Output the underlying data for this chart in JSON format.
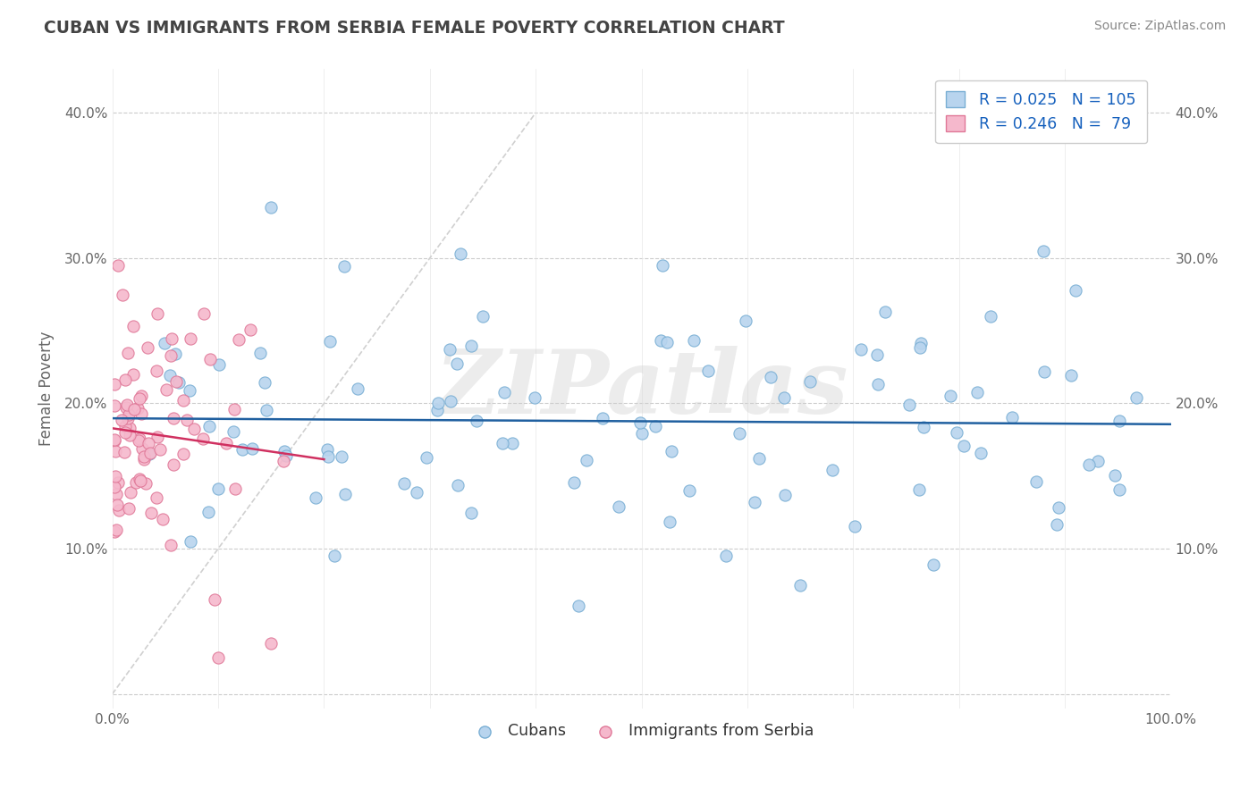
{
  "title": "CUBAN VS IMMIGRANTS FROM SERBIA FEMALE POVERTY CORRELATION CHART",
  "source": "Source: ZipAtlas.com",
  "ylabel": "Female Poverty",
  "xlim": [
    0,
    100
  ],
  "ylim": [
    -1,
    43
  ],
  "series": [
    {
      "name": "Cubans",
      "color": "#b8d4ee",
      "edge_color": "#7aafd4",
      "R": 0.025,
      "N": 105,
      "trend_color": "#2060a0"
    },
    {
      "name": "Immigrants from Serbia",
      "color": "#f5b8cc",
      "edge_color": "#e07898",
      "R": 0.246,
      "N": 79,
      "trend_color": "#d03060"
    }
  ],
  "legend_color": "#1560bd",
  "watermark": "ZIPatlas",
  "watermark_color": "#d0d0d0",
  "background_color": "#ffffff",
  "grid_color": "#cccccc",
  "title_color": "#444444"
}
